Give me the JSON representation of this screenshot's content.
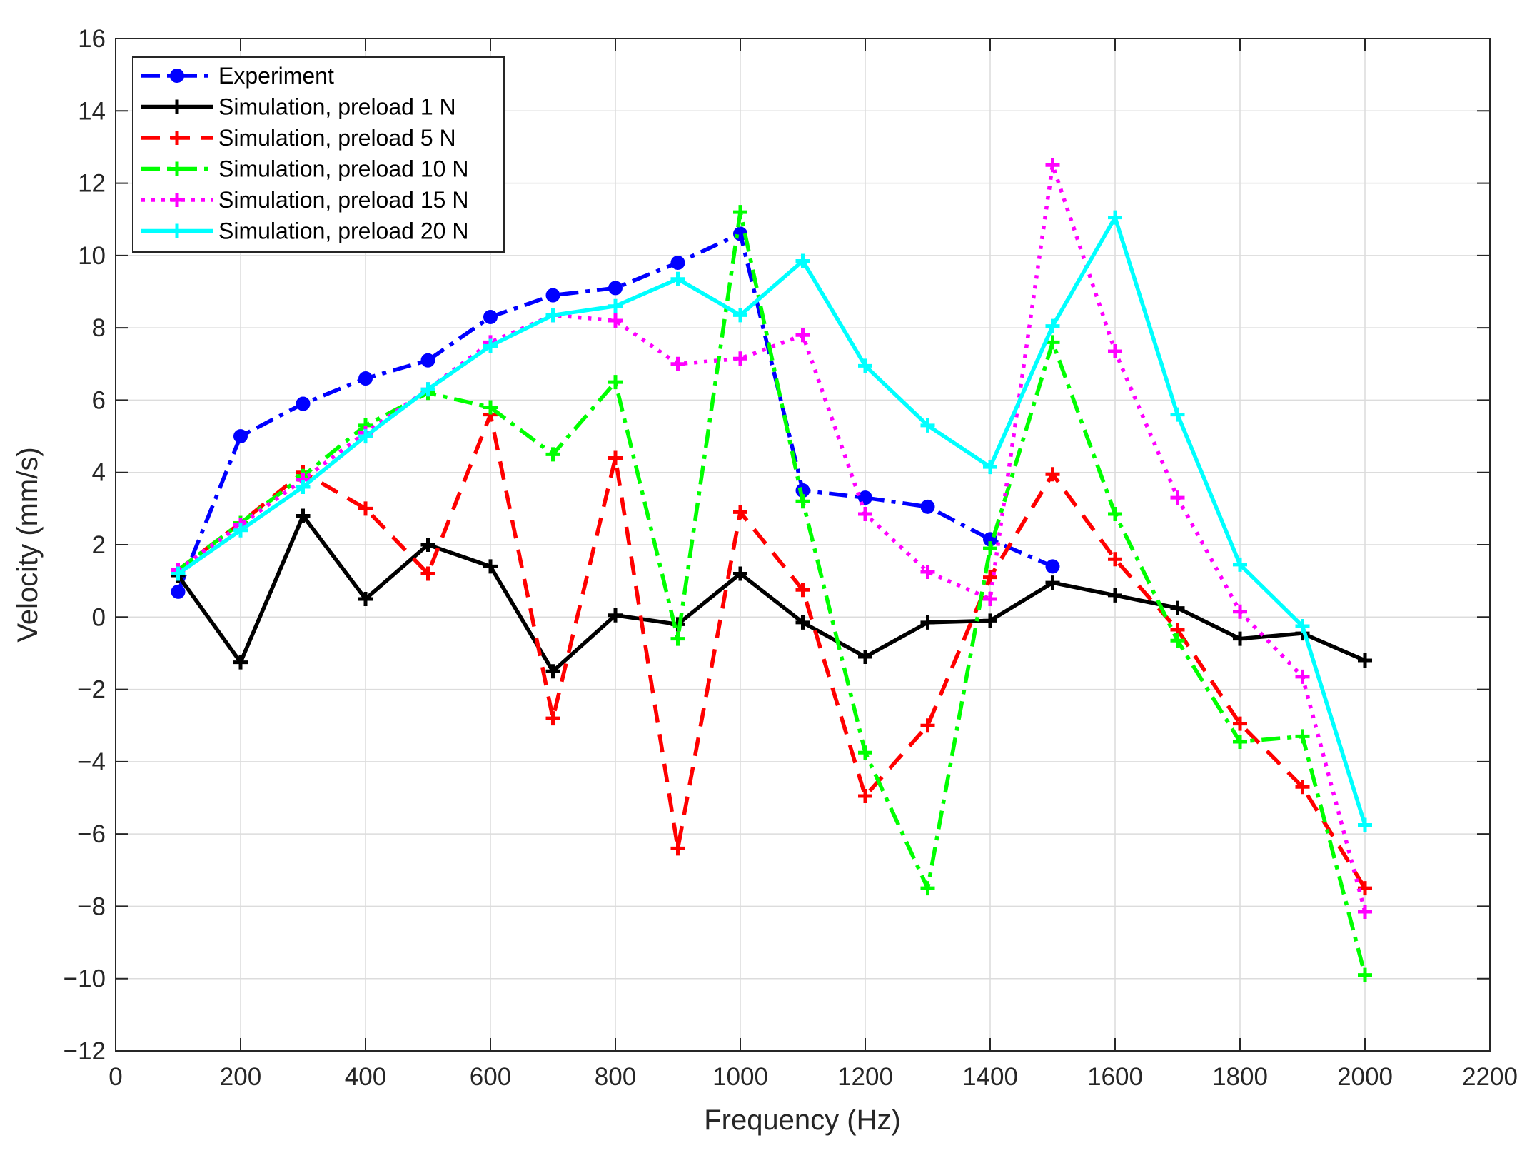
{
  "chart_data": {
    "type": "line",
    "title": "",
    "xlabel": "Frequency (Hz)",
    "ylabel": "Velocity (mm/s)",
    "xlim": [
      0,
      2200
    ],
    "ylim": [
      -12,
      16
    ],
    "xticks": [
      0,
      200,
      400,
      600,
      800,
      1000,
      1200,
      1400,
      1600,
      1800,
      2000,
      2200
    ],
    "yticks": [
      -12,
      -10,
      -8,
      -6,
      -4,
      -2,
      0,
      2,
      4,
      6,
      8,
      10,
      12,
      14,
      16
    ],
    "grid": true,
    "legend_position": "top-left",
    "series": [
      {
        "name": "Experiment",
        "color": "#0000ff",
        "line_style": "dash-dot",
        "marker": "circle",
        "x": [
          100,
          200,
          300,
          400,
          500,
          600,
          700,
          800,
          900,
          1000,
          1100,
          1200,
          1300,
          1400,
          1500
        ],
        "y": [
          0.7,
          5.0,
          5.9,
          6.6,
          7.1,
          8.3,
          8.9,
          9.1,
          9.8,
          10.6,
          3.5,
          3.3,
          3.05,
          2.15,
          1.4
        ]
      },
      {
        "name": "Simulation, preload 1 N",
        "color": "#000000",
        "line_style": "solid",
        "marker": "plus",
        "x": [
          100,
          200,
          300,
          400,
          500,
          600,
          700,
          800,
          900,
          1000,
          1100,
          1200,
          1300,
          1400,
          1500,
          1600,
          1700,
          1800,
          1900,
          2000
        ],
        "y": [
          1.15,
          -1.25,
          2.8,
          0.5,
          2.0,
          1.4,
          -1.5,
          0.05,
          -0.2,
          1.2,
          -0.15,
          -1.1,
          -0.15,
          -0.1,
          0.95,
          0.6,
          0.25,
          -0.6,
          -0.45,
          -1.2
        ]
      },
      {
        "name": "Simulation, preload 5 N",
        "color": "#ff0000",
        "line_style": "dashed",
        "marker": "plus",
        "x": [
          100,
          200,
          300,
          400,
          500,
          600,
          700,
          800,
          900,
          1000,
          1100,
          1200,
          1300,
          1400,
          1500,
          1600,
          1700,
          1800,
          1900,
          2000
        ],
        "y": [
          1.3,
          2.6,
          4.0,
          3.0,
          1.2,
          5.6,
          -2.8,
          4.4,
          -6.4,
          2.9,
          0.75,
          -4.95,
          -3.0,
          1.1,
          3.95,
          1.6,
          -0.35,
          -2.95,
          -4.7,
          -7.5
        ]
      },
      {
        "name": "Simulation, preload 10 N",
        "color": "#00ff00",
        "line_style": "dash-dot",
        "marker": "plus",
        "x": [
          100,
          200,
          300,
          400,
          500,
          600,
          700,
          800,
          900,
          1000,
          1100,
          1200,
          1300,
          1400,
          1500,
          1600,
          1700,
          1800,
          1900,
          2000
        ],
        "y": [
          1.3,
          2.6,
          3.9,
          5.3,
          6.2,
          5.8,
          4.5,
          6.5,
          -0.6,
          11.2,
          3.2,
          -3.75,
          -7.5,
          1.9,
          7.6,
          2.85,
          -0.65,
          -3.45,
          -3.3,
          -9.9
        ]
      },
      {
        "name": "Simulation, preload 15 N",
        "color": "#ff00ff",
        "line_style": "dotted",
        "marker": "plus",
        "x": [
          100,
          200,
          300,
          400,
          500,
          600,
          700,
          800,
          900,
          1000,
          1100,
          1200,
          1300,
          1400,
          1500,
          1600,
          1700,
          1800,
          1900,
          2000
        ],
        "y": [
          1.3,
          2.55,
          3.8,
          5.1,
          6.3,
          7.6,
          8.35,
          8.2,
          7.0,
          7.15,
          7.8,
          2.85,
          1.25,
          0.5,
          12.5,
          7.35,
          3.3,
          0.15,
          -1.65,
          -8.15
        ]
      },
      {
        "name": "Simulation, preload 20 N",
        "color": "#00ffff",
        "line_style": "solid",
        "marker": "plus",
        "x": [
          100,
          200,
          300,
          400,
          500,
          600,
          700,
          800,
          900,
          1000,
          1100,
          1200,
          1300,
          1400,
          1500,
          1600,
          1700,
          1800,
          1900,
          2000
        ],
        "y": [
          1.2,
          2.4,
          3.6,
          5.0,
          6.3,
          7.5,
          8.35,
          8.6,
          9.35,
          8.35,
          9.85,
          6.95,
          5.3,
          4.15,
          8.05,
          11.05,
          5.6,
          1.45,
          -0.25,
          -5.75
        ]
      }
    ]
  }
}
